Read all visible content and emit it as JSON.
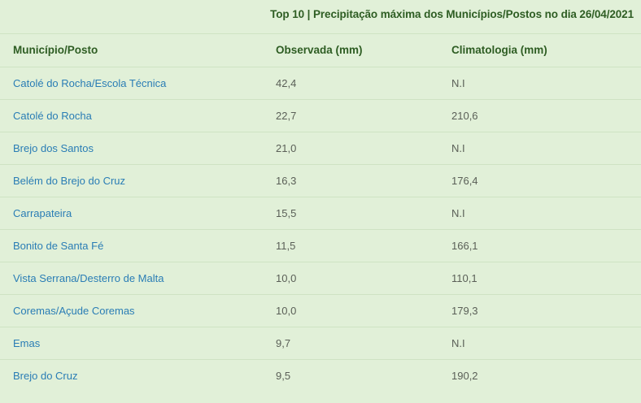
{
  "caption": "Top 10 | Precipitação máxima dos Municípios/Postos no dia 26/04/2021",
  "headers": {
    "municipio": "Município/Posto",
    "observada": "Observada (mm)",
    "climatologia": "Climatologia (mm)"
  },
  "rows": [
    {
      "municipio": "Catolé do Rocha/Escola Técnica",
      "observada": "42,4",
      "climatologia": "N.I"
    },
    {
      "municipio": "Catolé do Rocha",
      "observada": "22,7",
      "climatologia": "210,6"
    },
    {
      "municipio": "Brejo dos Santos",
      "observada": "21,0",
      "climatologia": "N.I"
    },
    {
      "municipio": "Belém do Brejo do Cruz",
      "observada": "16,3",
      "climatologia": "176,4"
    },
    {
      "municipio": "Carrapateira",
      "observada": "15,5",
      "climatologia": "N.I"
    },
    {
      "municipio": "Bonito de Santa Fé",
      "observada": "11,5",
      "climatologia": "166,1"
    },
    {
      "municipio": "Vista Serrana/Desterro de Malta",
      "observada": "10,0",
      "climatologia": "110,1"
    },
    {
      "municipio": "Coremas/Açude Coremas",
      "observada": "10,0",
      "climatologia": "179,3"
    },
    {
      "municipio": "Emas",
      "observada": "9,7",
      "climatologia": "N.I"
    },
    {
      "municipio": "Brejo do Cruz",
      "observada": "9,5",
      "climatologia": "190,2"
    }
  ]
}
